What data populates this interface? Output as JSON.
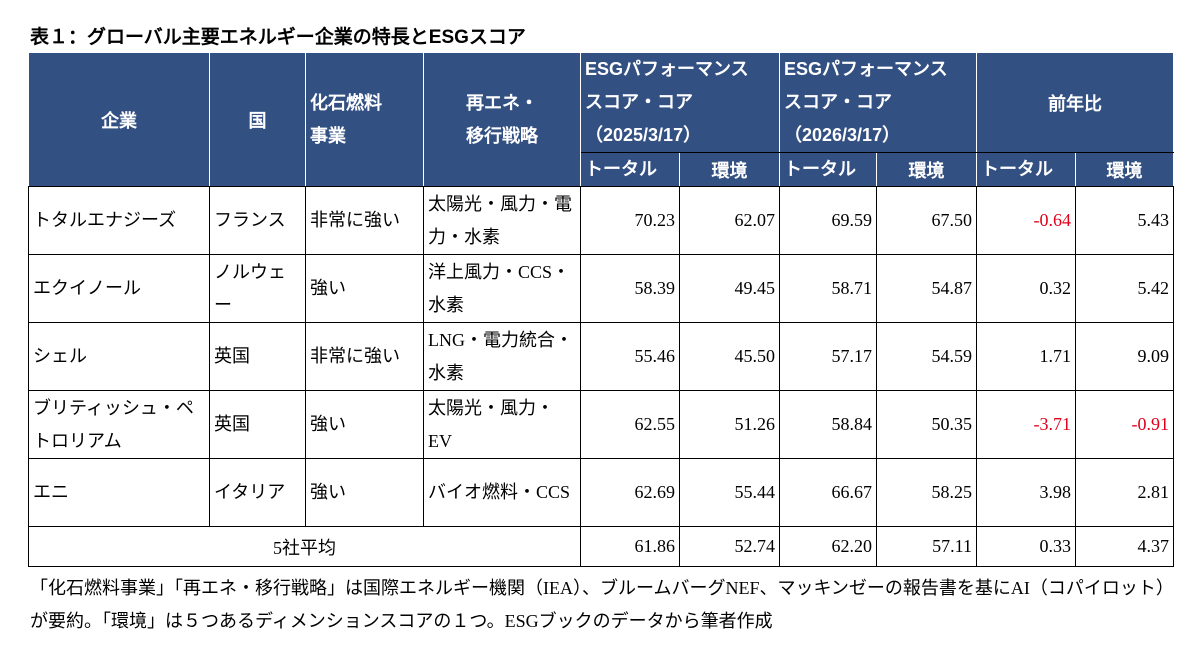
{
  "title": "表１：グローバル主要エネルギー企業の特長とESGスコア",
  "headers": {
    "company": "企業",
    "country": "国",
    "fossil": "化石燃料\n事業",
    "renewable": "再エネ・\n移行戦略",
    "score2025": [
      "ESGパフォーマンス",
      "スコア・コア",
      "（2025/3/17）"
    ],
    "score2026": [
      "ESGパフォーマンス",
      "スコア・コア",
      "（2026/3/17）"
    ],
    "yoy": "前年比",
    "total": "トータル",
    "env": "環境"
  },
  "rows": [
    {
      "company": "トタルエナジーズ",
      "country": "フランス",
      "fossil": "非常に強い",
      "strategy": "太陽光・風力・電力・水素",
      "v": [
        "70.23",
        "62.07",
        "69.59",
        "67.50",
        "-0.64",
        "5.43"
      ]
    },
    {
      "company": "エクイノール",
      "country": "ノルウェー",
      "fossil": "強い",
      "strategy": "洋上風力・CCS・水素",
      "v": [
        "58.39",
        "49.45",
        "58.71",
        "54.87",
        "0.32",
        "5.42"
      ]
    },
    {
      "company": "シェル",
      "country": "英国",
      "fossil": "非常に強い",
      "strategy": "LNG・電力統合・水素",
      "v": [
        "55.46",
        "45.50",
        "57.17",
        "54.59",
        "1.71",
        "9.09"
      ]
    },
    {
      "company": "ブリティッシュ・ペトロリアム",
      "country": "英国",
      "fossil": "強い",
      "strategy": "太陽光・風力・EV",
      "v": [
        "62.55",
        "51.26",
        "58.84",
        "50.35",
        "-3.71",
        "-0.91"
      ]
    },
    {
      "company": "エニ",
      "country": "イタリア",
      "fossil": "強い",
      "strategy": "バイオ燃料・CCS",
      "v": [
        "62.69",
        "55.44",
        "66.67",
        "58.25",
        "3.98",
        "2.81"
      ]
    }
  ],
  "average": {
    "label": "5社平均",
    "v": [
      "61.86",
      "52.74",
      "62.20",
      "57.11",
      "0.33",
      "4.37"
    ]
  },
  "note": "「化石燃料事業」「再エネ・移行戦略」は国際エネルギー機関（IEA）、ブルームバーグNEF、マッキンゼーの報告書を基にAI（コパイロット）が要約。「環境」は５つあるディメンションスコアの１つ。ESGブックのデータから筆者作成",
  "colors": {
    "header": "#335083",
    "negative": "#e0001b"
  }
}
